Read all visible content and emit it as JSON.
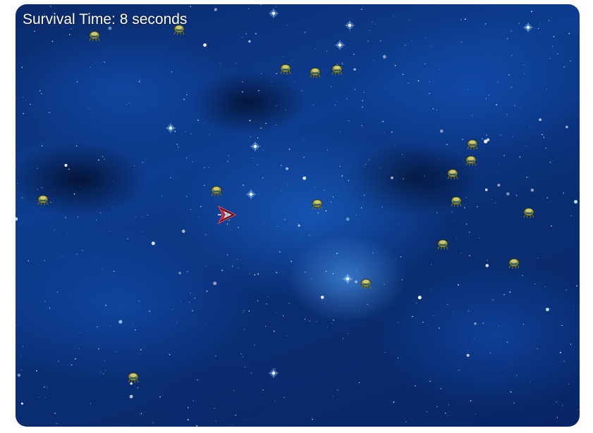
{
  "hud": {
    "survival_time": "Survival Time: 8 seconds"
  },
  "colors": {
    "space_blue": "#0d3d8f",
    "hud_text": "#ffffff",
    "ship_red": "#c8283c",
    "alien_olive": "#8a8a3a"
  },
  "icons": {
    "player": "spaceship-icon",
    "enemy": "alien-icon"
  }
}
